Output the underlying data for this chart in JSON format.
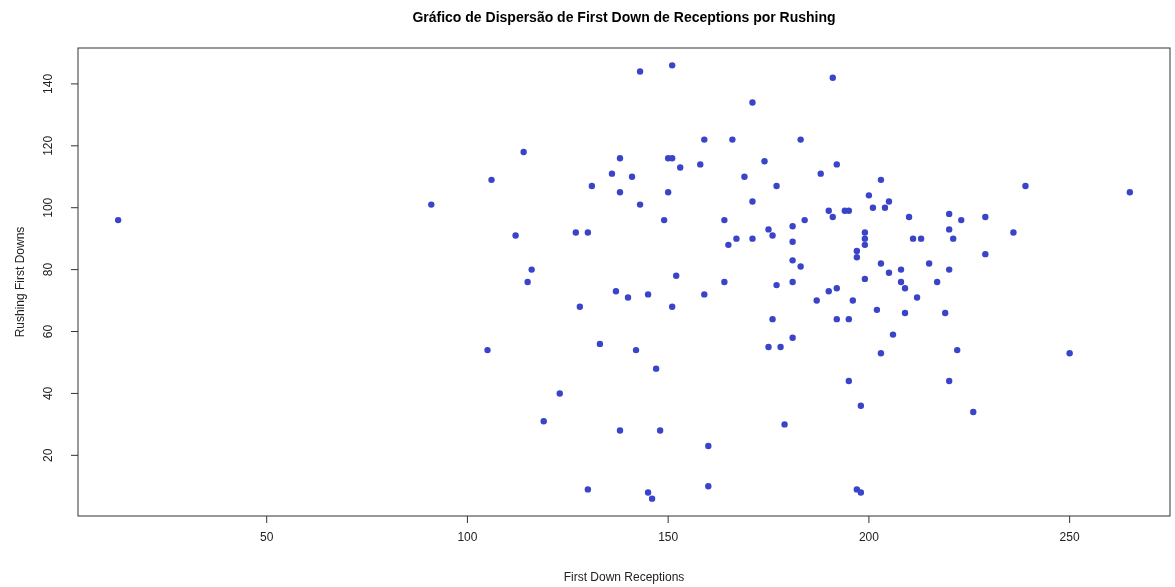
{
  "chart_data": {
    "type": "scatter",
    "title": "Gráfico de Dispersão de First Down de Receptions por Rushing",
    "xlabel": "First Down Receptions",
    "ylabel": "Rushing First Downs",
    "xlim": [
      3,
      275
    ],
    "ylim": [
      0.4,
      151.6
    ],
    "xticks": [
      50,
      100,
      150,
      200,
      250
    ],
    "yticks": [
      20,
      40,
      60,
      80,
      100,
      120,
      140
    ],
    "grid": false,
    "marker": "circle",
    "series": [
      {
        "color": "#3a44c8",
        "x": [
          13,
          91,
          105,
          106,
          112,
          114,
          115,
          116,
          119,
          123,
          127,
          128,
          130,
          130,
          131,
          133,
          136,
          137,
          138,
          138,
          138,
          140,
          141,
          142,
          143,
          143,
          145,
          145,
          147,
          146,
          148,
          149,
          150,
          150,
          151,
          151,
          151,
          152,
          153,
          158,
          159,
          159,
          160,
          160,
          164,
          164,
          165,
          166,
          167,
          169,
          171,
          171,
          171,
          174,
          175,
          175,
          176,
          176,
          177,
          177,
          178,
          179,
          181,
          181,
          181,
          181,
          181,
          183,
          183,
          184,
          187,
          188,
          190,
          190,
          191,
          191,
          192,
          192,
          192,
          194,
          195,
          195,
          195,
          196,
          197,
          197,
          197,
          198,
          198,
          199,
          199,
          199,
          199,
          200,
          201,
          202,
          203,
          203,
          203,
          204,
          205,
          205,
          206,
          208,
          208,
          209,
          209,
          210,
          211,
          212,
          213,
          215,
          217,
          219,
          220,
          220,
          220,
          220,
          221,
          222,
          223,
          226,
          229,
          229,
          236,
          239,
          250,
          265
        ],
        "values": [
          96,
          101,
          54,
          109,
          91,
          118,
          76,
          80,
          31,
          40,
          92,
          68,
          92,
          9,
          107,
          56,
          111,
          73,
          116,
          105,
          28,
          71,
          110,
          54,
          144,
          101,
          72,
          8,
          48,
          6,
          28,
          96,
          105,
          116,
          116,
          146,
          68,
          78,
          113,
          114,
          122,
          72,
          23,
          10,
          96,
          76,
          88,
          122,
          90,
          110,
          134,
          102,
          90,
          115,
          93,
          55,
          64,
          91,
          107,
          75,
          55,
          30,
          94,
          89,
          83,
          76,
          58,
          122,
          81,
          96,
          70,
          111,
          73,
          99,
          142,
          97,
          114,
          74,
          64,
          99,
          99,
          64,
          44,
          70,
          86,
          84,
          9,
          8,
          36,
          92,
          90,
          88,
          77,
          104,
          100,
          67,
          109,
          82,
          53,
          100,
          102,
          79,
          59,
          80,
          76,
          74,
          66,
          97,
          90,
          71,
          90,
          82,
          76,
          66,
          98,
          93,
          80,
          44,
          90,
          54,
          96,
          34,
          97,
          85,
          92,
          107,
          53,
          105
        ]
      }
    ]
  }
}
